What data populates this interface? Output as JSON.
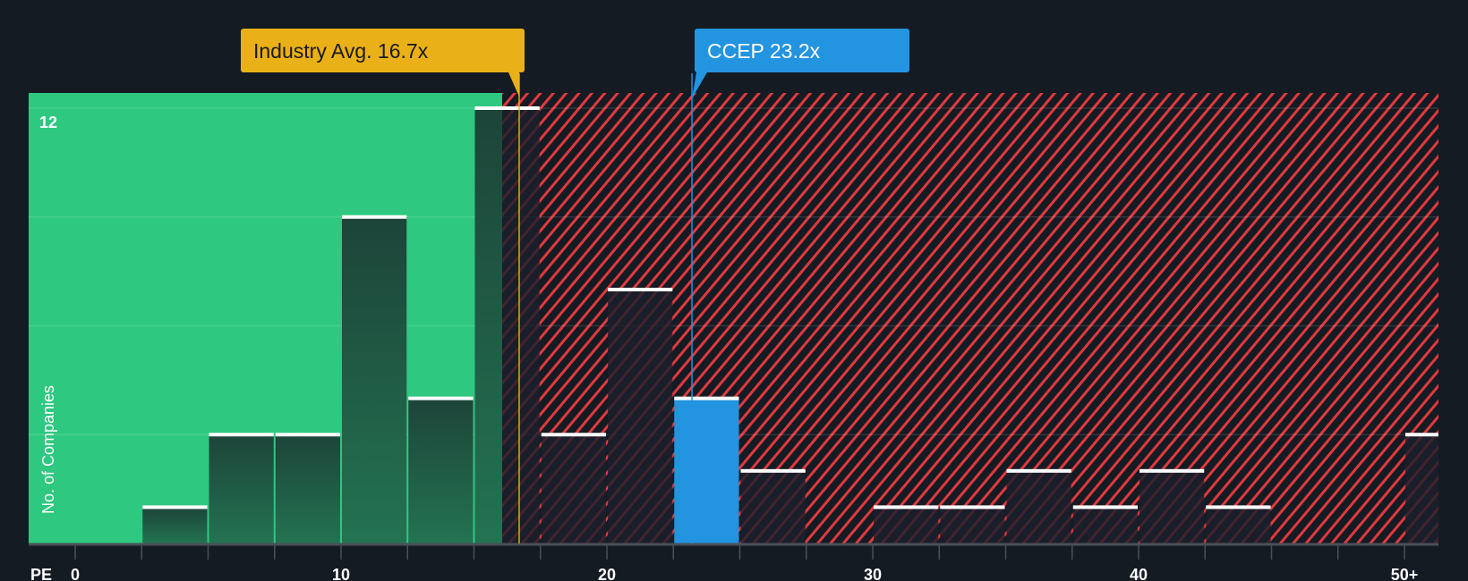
{
  "chart_data": {
    "type": "bar",
    "title": "",
    "xlabel": "PE",
    "ylabel": "No. of Companies",
    "xlim": [
      0,
      51.5
    ],
    "ylim": [
      0,
      12
    ],
    "x_ticks": [
      "0",
      "10",
      "20",
      "30",
      "40",
      "50+"
    ],
    "y_ticks_labeled": [
      "12"
    ],
    "bin_width": 2.5,
    "bins": [
      {
        "start": 2.5,
        "value": 1
      },
      {
        "start": 5,
        "value": 3
      },
      {
        "start": 7.5,
        "value": 3
      },
      {
        "start": 10,
        "value": 9
      },
      {
        "start": 12.5,
        "value": 4
      },
      {
        "start": 15,
        "value": 12
      },
      {
        "start": 17.5,
        "value": 3
      },
      {
        "start": 20,
        "value": 7
      },
      {
        "start": 22.5,
        "value": 4,
        "highlight": true
      },
      {
        "start": 25,
        "value": 2
      },
      {
        "start": 30,
        "value": 1
      },
      {
        "start": 32.5,
        "value": 1
      },
      {
        "start": 35,
        "value": 2
      },
      {
        "start": 37.5,
        "value": 1
      },
      {
        "start": 40,
        "value": 2
      },
      {
        "start": 42.5,
        "value": 1
      },
      {
        "start": 50,
        "value": 3,
        "label": "50+"
      }
    ],
    "fair_threshold": 16.06,
    "annotations": [
      {
        "label": "Industry Avg. 16.7x",
        "value": 16.7,
        "color": "#eab017"
      },
      {
        "label": "CCEP 23.2x",
        "value": 23.2,
        "color": "#2394e0"
      }
    ],
    "colors": {
      "background": "#151b23",
      "good": "#2ec880",
      "bad_stripe": "#e0393e",
      "highlight": "#2394e0"
    }
  }
}
